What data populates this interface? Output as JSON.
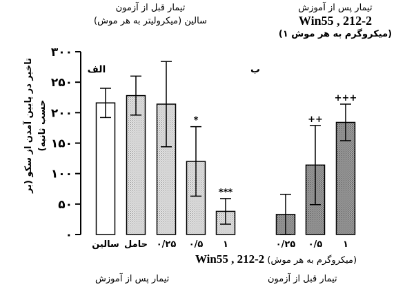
{
  "headers": {
    "left_line1": "تیمار قبل از آزمون",
    "left_line2": "سالین (میکرولیتر به هر موش)",
    "right_line1": "تیمار پس از آموزش",
    "right_line2": "Win55 , 212-2",
    "right_line3": "(۱ میکروگرم به هر موش)"
  },
  "bottom": {
    "unit_prefix": "(میکروگرم به هر موش)",
    "unit_name": "Win55 , 212-2",
    "left_caption": "تیمار پس از آموزش",
    "right_caption": "تیمار قبل از آزمون"
  },
  "chart_data": {
    "type": "bar",
    "ylabel": "تاخیر در پایین آمدن از سکو (بر حسب ثانیه)",
    "ylim": [
      0,
      300
    ],
    "yticks": [
      0,
      50,
      100,
      150,
      200,
      250,
      300
    ],
    "ytick_labels": [
      "٠",
      "۵٠",
      "١٠٠",
      "١۵٠",
      "٢٠٠",
      "٢۵٠",
      "٣٠٠"
    ],
    "panel_labels": [
      "الف",
      "ب"
    ],
    "bars": [
      {
        "label": "سالین",
        "value": 216,
        "error": 24,
        "fill": "white",
        "sig": ""
      },
      {
        "label": "حامل",
        "value": 228,
        "error": 32,
        "fill": "light",
        "sig": ""
      },
      {
        "label": "۰/۲۵",
        "value": 214,
        "error": 70,
        "fill": "light",
        "sig": ""
      },
      {
        "label": "۰/۵",
        "value": 120,
        "error": 57,
        "fill": "light",
        "sig": "*"
      },
      {
        "label": "۱",
        "value": 38,
        "error": 21,
        "fill": "light",
        "sig": "***"
      },
      {
        "label": "۰/۲۵",
        "value": 33,
        "error": 33,
        "fill": "dark",
        "sig": ""
      },
      {
        "label": "۰/۵",
        "value": 114,
        "error": 65,
        "fill": "dark",
        "sig": "++"
      },
      {
        "label": "۱",
        "value": 184,
        "error": 30,
        "fill": "dark",
        "sig": "+++"
      }
    ]
  },
  "colors": {
    "axis": "#000000",
    "bar_white": "#ffffff",
    "bar_light": "#d8d8d8",
    "bar_dark": "#9a9a9a"
  }
}
